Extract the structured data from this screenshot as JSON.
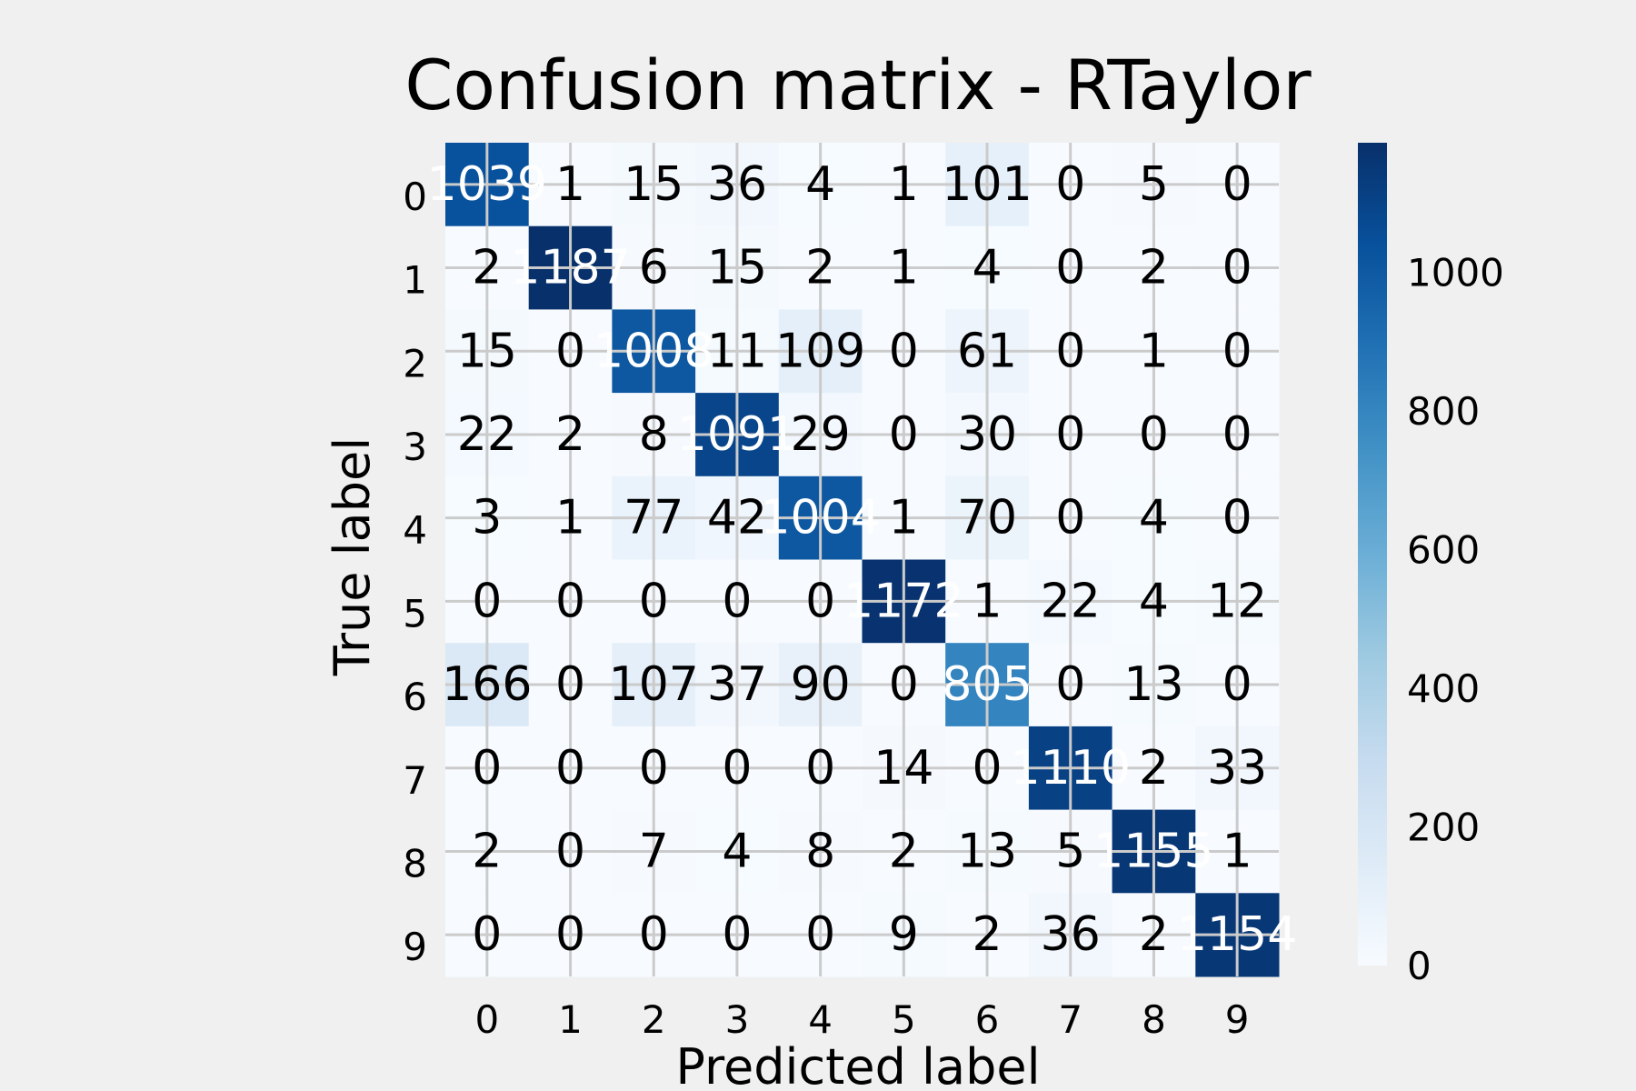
{
  "chart_data": {
    "type": "heatmap",
    "title": "Confusion matrix - RTaylor",
    "xlabel": "Predicted label",
    "ylabel": "True label",
    "x_categories": [
      "0",
      "1",
      "2",
      "3",
      "4",
      "5",
      "6",
      "7",
      "8",
      "9"
    ],
    "y_categories": [
      "0",
      "1",
      "2",
      "3",
      "4",
      "5",
      "6",
      "7",
      "8",
      "9"
    ],
    "matrix": [
      [
        1039,
        1,
        15,
        36,
        4,
        1,
        101,
        0,
        5,
        0
      ],
      [
        2,
        1187,
        6,
        15,
        2,
        1,
        4,
        0,
        2,
        0
      ],
      [
        15,
        0,
        1008,
        11,
        109,
        0,
        61,
        0,
        1,
        0
      ],
      [
        22,
        2,
        8,
        1091,
        29,
        0,
        30,
        0,
        0,
        0
      ],
      [
        3,
        1,
        77,
        42,
        1004,
        1,
        70,
        0,
        4,
        0
      ],
      [
        0,
        0,
        0,
        0,
        0,
        1172,
        1,
        22,
        4,
        12
      ],
      [
        166,
        0,
        107,
        37,
        90,
        0,
        805,
        0,
        13,
        0
      ],
      [
        0,
        0,
        0,
        0,
        0,
        14,
        0,
        1110,
        2,
        33
      ],
      [
        2,
        0,
        7,
        4,
        8,
        2,
        13,
        5,
        1155,
        1
      ],
      [
        0,
        0,
        0,
        0,
        0,
        9,
        2,
        36,
        2,
        1154
      ]
    ],
    "colormap": "Blues",
    "vmin": 0,
    "vmax": 1187,
    "colorbar_ticks": [
      0,
      200,
      400,
      600,
      800,
      1000
    ],
    "grid": true,
    "colors": {
      "background": "#f0f0f0",
      "grid": "#cbcbcb",
      "text_dark": "#000000",
      "text_light": "#ffffff"
    }
  }
}
